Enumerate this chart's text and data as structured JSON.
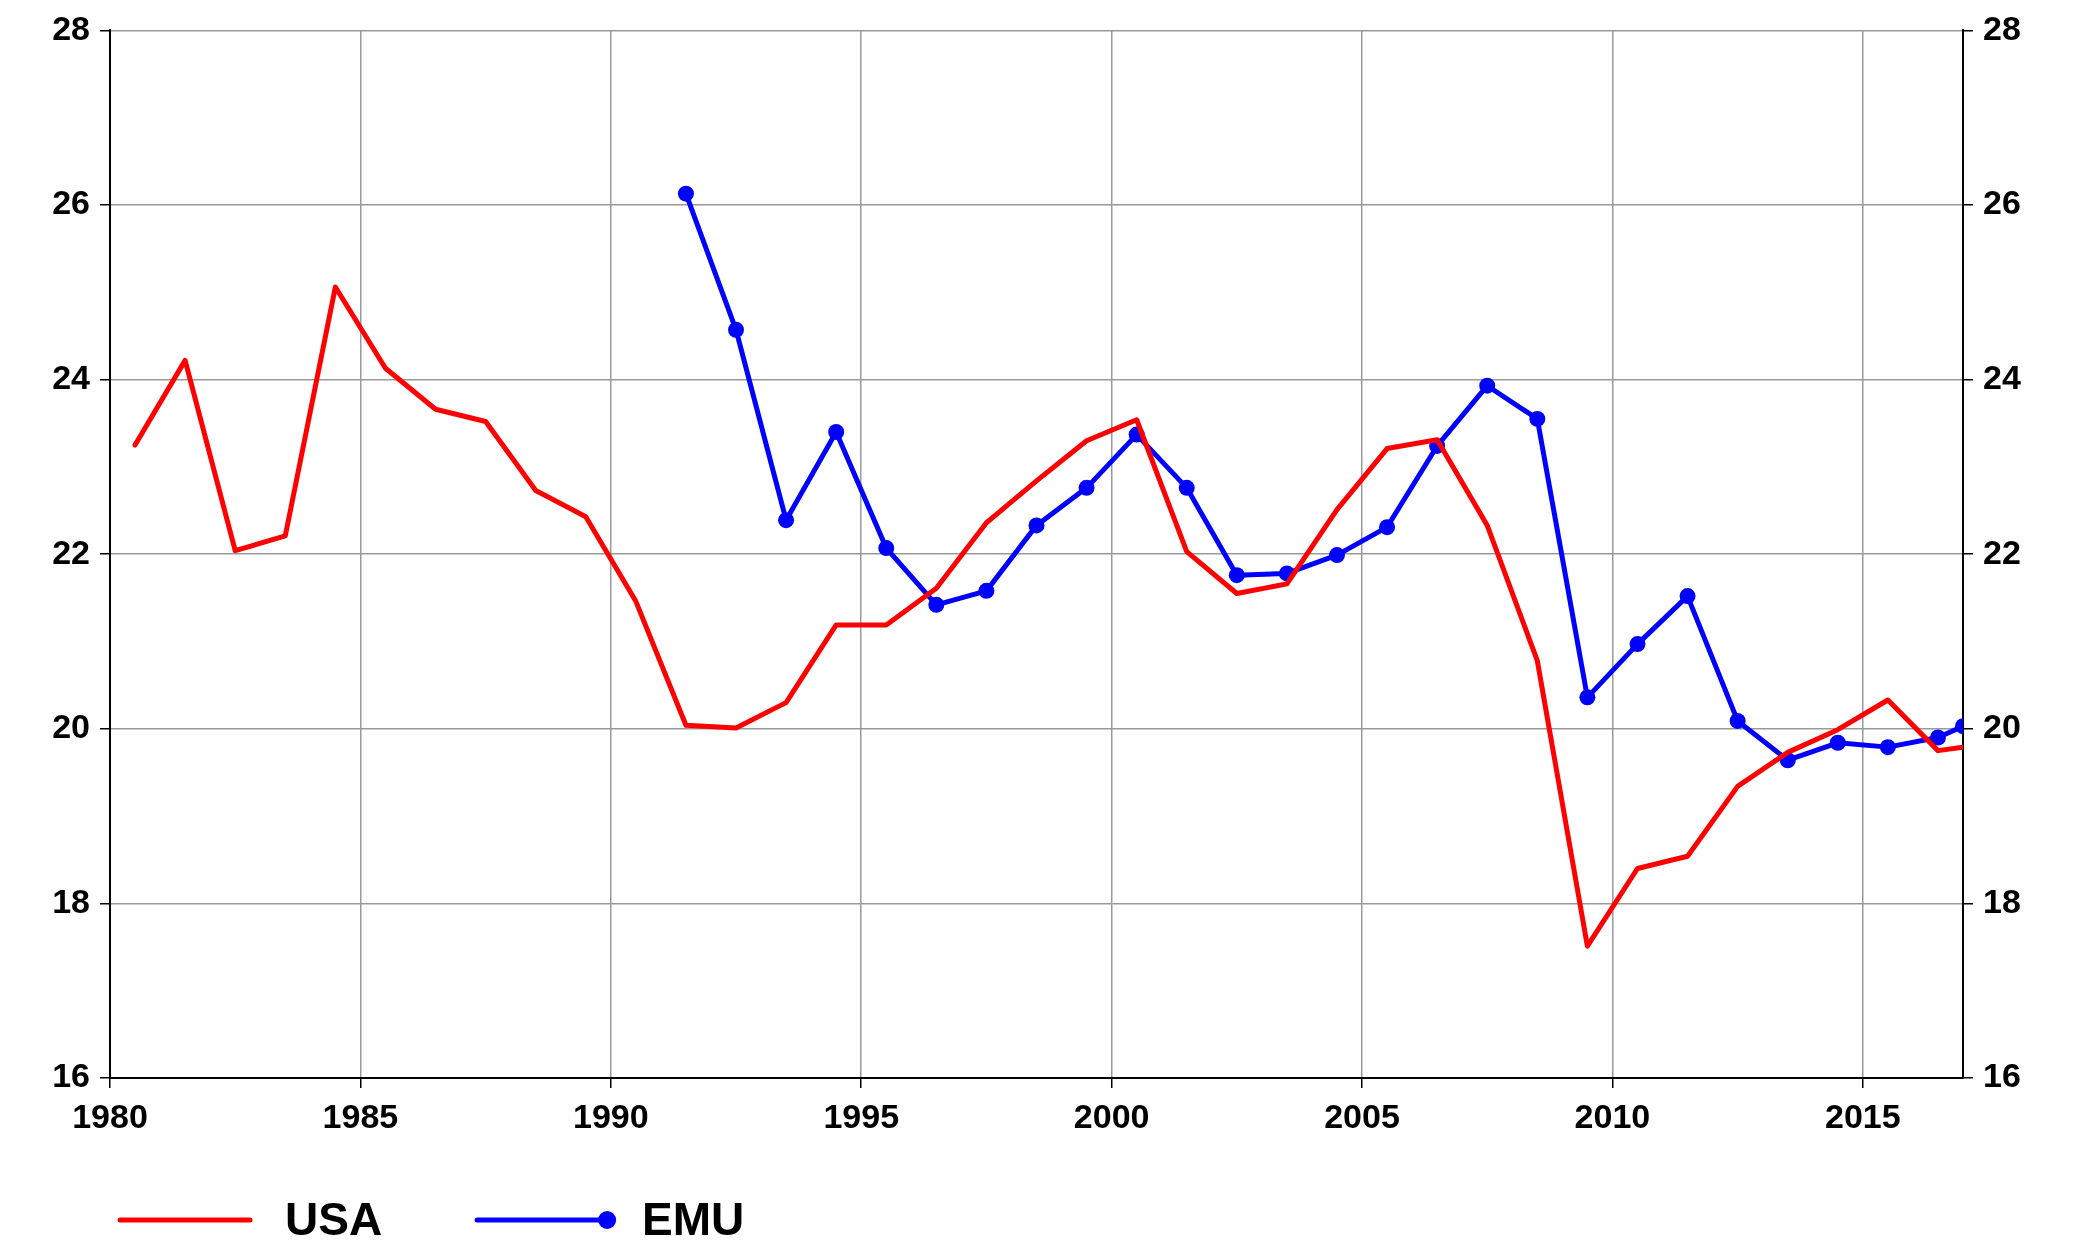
{
  "chart_data": {
    "type": "line",
    "xlim": [
      1980,
      2017
    ],
    "xticks": [
      1980,
      1985,
      1990,
      1995,
      2000,
      2005,
      2010,
      2015
    ],
    "ylim": [
      16,
      28
    ],
    "yticks": [
      16,
      18,
      20,
      22,
      24,
      26,
      28
    ],
    "y2lim": [
      16,
      28
    ],
    "y2ticks": [
      16,
      18,
      20,
      22,
      24,
      26,
      28
    ],
    "grid": true,
    "legend": "bottom left",
    "series": [
      {
        "name": "USA",
        "color": "#ff0000",
        "marker": "none",
        "x": [
          1980.5,
          1981.5,
          1982.5,
          1983.5,
          1984.5,
          1985.5,
          1986.5,
          1987.5,
          1988.5,
          1989.5,
          1990.5,
          1991.5,
          1992.5,
          1993.5,
          1994.5,
          1995.5,
          1996.5,
          1997.5,
          1998.5,
          1999.5,
          2000.5,
          2001.5,
          2002.5,
          2003.5,
          2004.5,
          2005.5,
          2006.5,
          2007.5,
          2008.5,
          2009.5,
          2010.5,
          2011.5,
          2012.5,
          2013.5,
          2014.5,
          2015.5,
          2016.5,
          2017
        ],
        "values": [
          23.25,
          24.22,
          22.04,
          22.21,
          25.06,
          24.13,
          23.66,
          23.52,
          22.73,
          22.43,
          21.46,
          20.04,
          20.01,
          20.3,
          21.19,
          21.19,
          21.61,
          22.36,
          22.84,
          23.3,
          23.54,
          22.03,
          21.55,
          21.66,
          22.51,
          23.21,
          23.31,
          22.33,
          20.78,
          17.51,
          18.4,
          18.54,
          19.34,
          19.73,
          19.99,
          20.33,
          19.75,
          19.79
        ]
      },
      {
        "name": "EMU",
        "color": "#0000ff",
        "marker": "circle",
        "x": [
          1991.5,
          1992.5,
          1993.5,
          1994.5,
          1995.5,
          1996.5,
          1997.5,
          1998.5,
          1999.5,
          2000.5,
          2001.5,
          2002.5,
          2003.5,
          2004.5,
          2005.5,
          2006.5,
          2007.5,
          2008.5,
          2009.5,
          2010.5,
          2011.5,
          2012.5,
          2013.5,
          2014.5,
          2015.5,
          2016.5,
          2017
        ],
        "values": [
          26.13,
          24.57,
          22.39,
          23.4,
          22.07,
          21.42,
          21.58,
          22.33,
          22.76,
          23.37,
          22.76,
          21.76,
          21.78,
          21.99,
          22.31,
          23.24,
          23.93,
          23.55,
          20.36,
          20.97,
          21.52,
          20.09,
          19.64,
          19.84,
          19.79,
          19.9,
          20.03
        ]
      }
    ]
  }
}
